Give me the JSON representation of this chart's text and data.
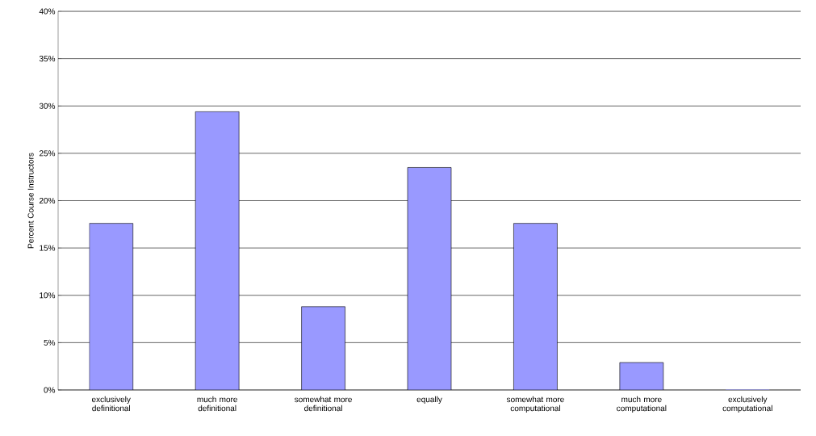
{
  "chart_data": {
    "type": "bar",
    "ylabel": "Percent Course Instructors",
    "categories": [
      "exclusively definitional",
      "much more definitional",
      "somewhat more definitional",
      "equally",
      "somewhat more computational",
      "much more computational",
      "exclusively computational"
    ],
    "values": [
      17.6,
      29.4,
      8.8,
      23.5,
      17.6,
      2.9,
      0
    ],
    "color": "#9999ff",
    "ylim": [
      0,
      40
    ],
    "yticks": [
      {
        "value": 0,
        "label": "0%"
      },
      {
        "value": 5,
        "label": "5%"
      },
      {
        "value": 10,
        "label": "10%"
      },
      {
        "value": 15,
        "label": "15%"
      },
      {
        "value": 20,
        "label": "20%"
      },
      {
        "value": 25,
        "label": "25%"
      },
      {
        "value": 30,
        "label": "30%"
      },
      {
        "value": 35,
        "label": "35%"
      },
      {
        "value": 40,
        "label": "40%"
      }
    ],
    "grid": "y"
  }
}
